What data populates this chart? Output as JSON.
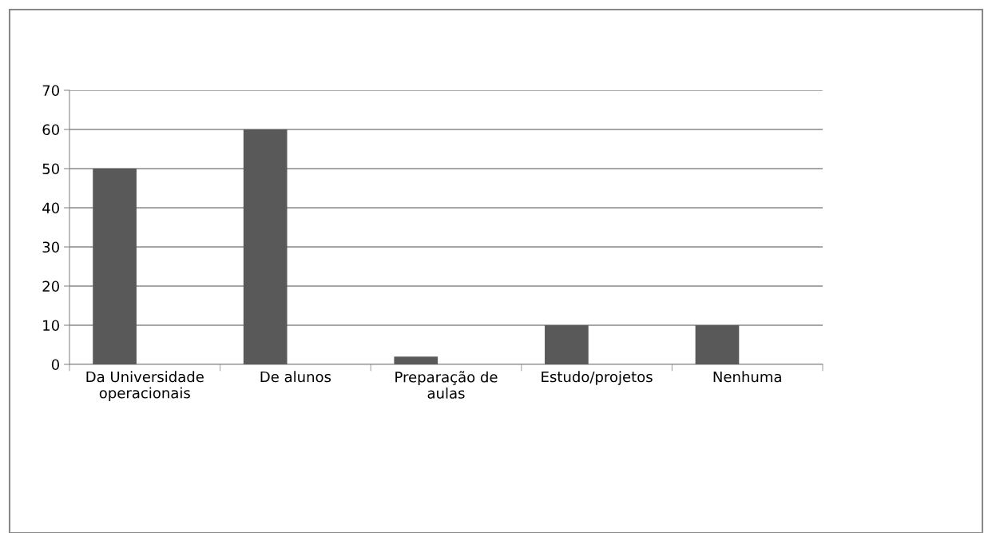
{
  "chart_data": {
    "type": "bar",
    "categories": [
      "Da Universidade operacionais",
      "De alunos",
      "Preparação de aulas",
      "Estudo/projetos",
      "Nenhuma"
    ],
    "values": [
      50,
      60,
      2,
      10,
      10
    ],
    "color": "#595959",
    "ylim": [
      0,
      70
    ],
    "yticks": [
      0,
      10,
      20,
      30,
      40,
      50,
      60,
      70
    ],
    "grid": "y",
    "legend": false
  }
}
